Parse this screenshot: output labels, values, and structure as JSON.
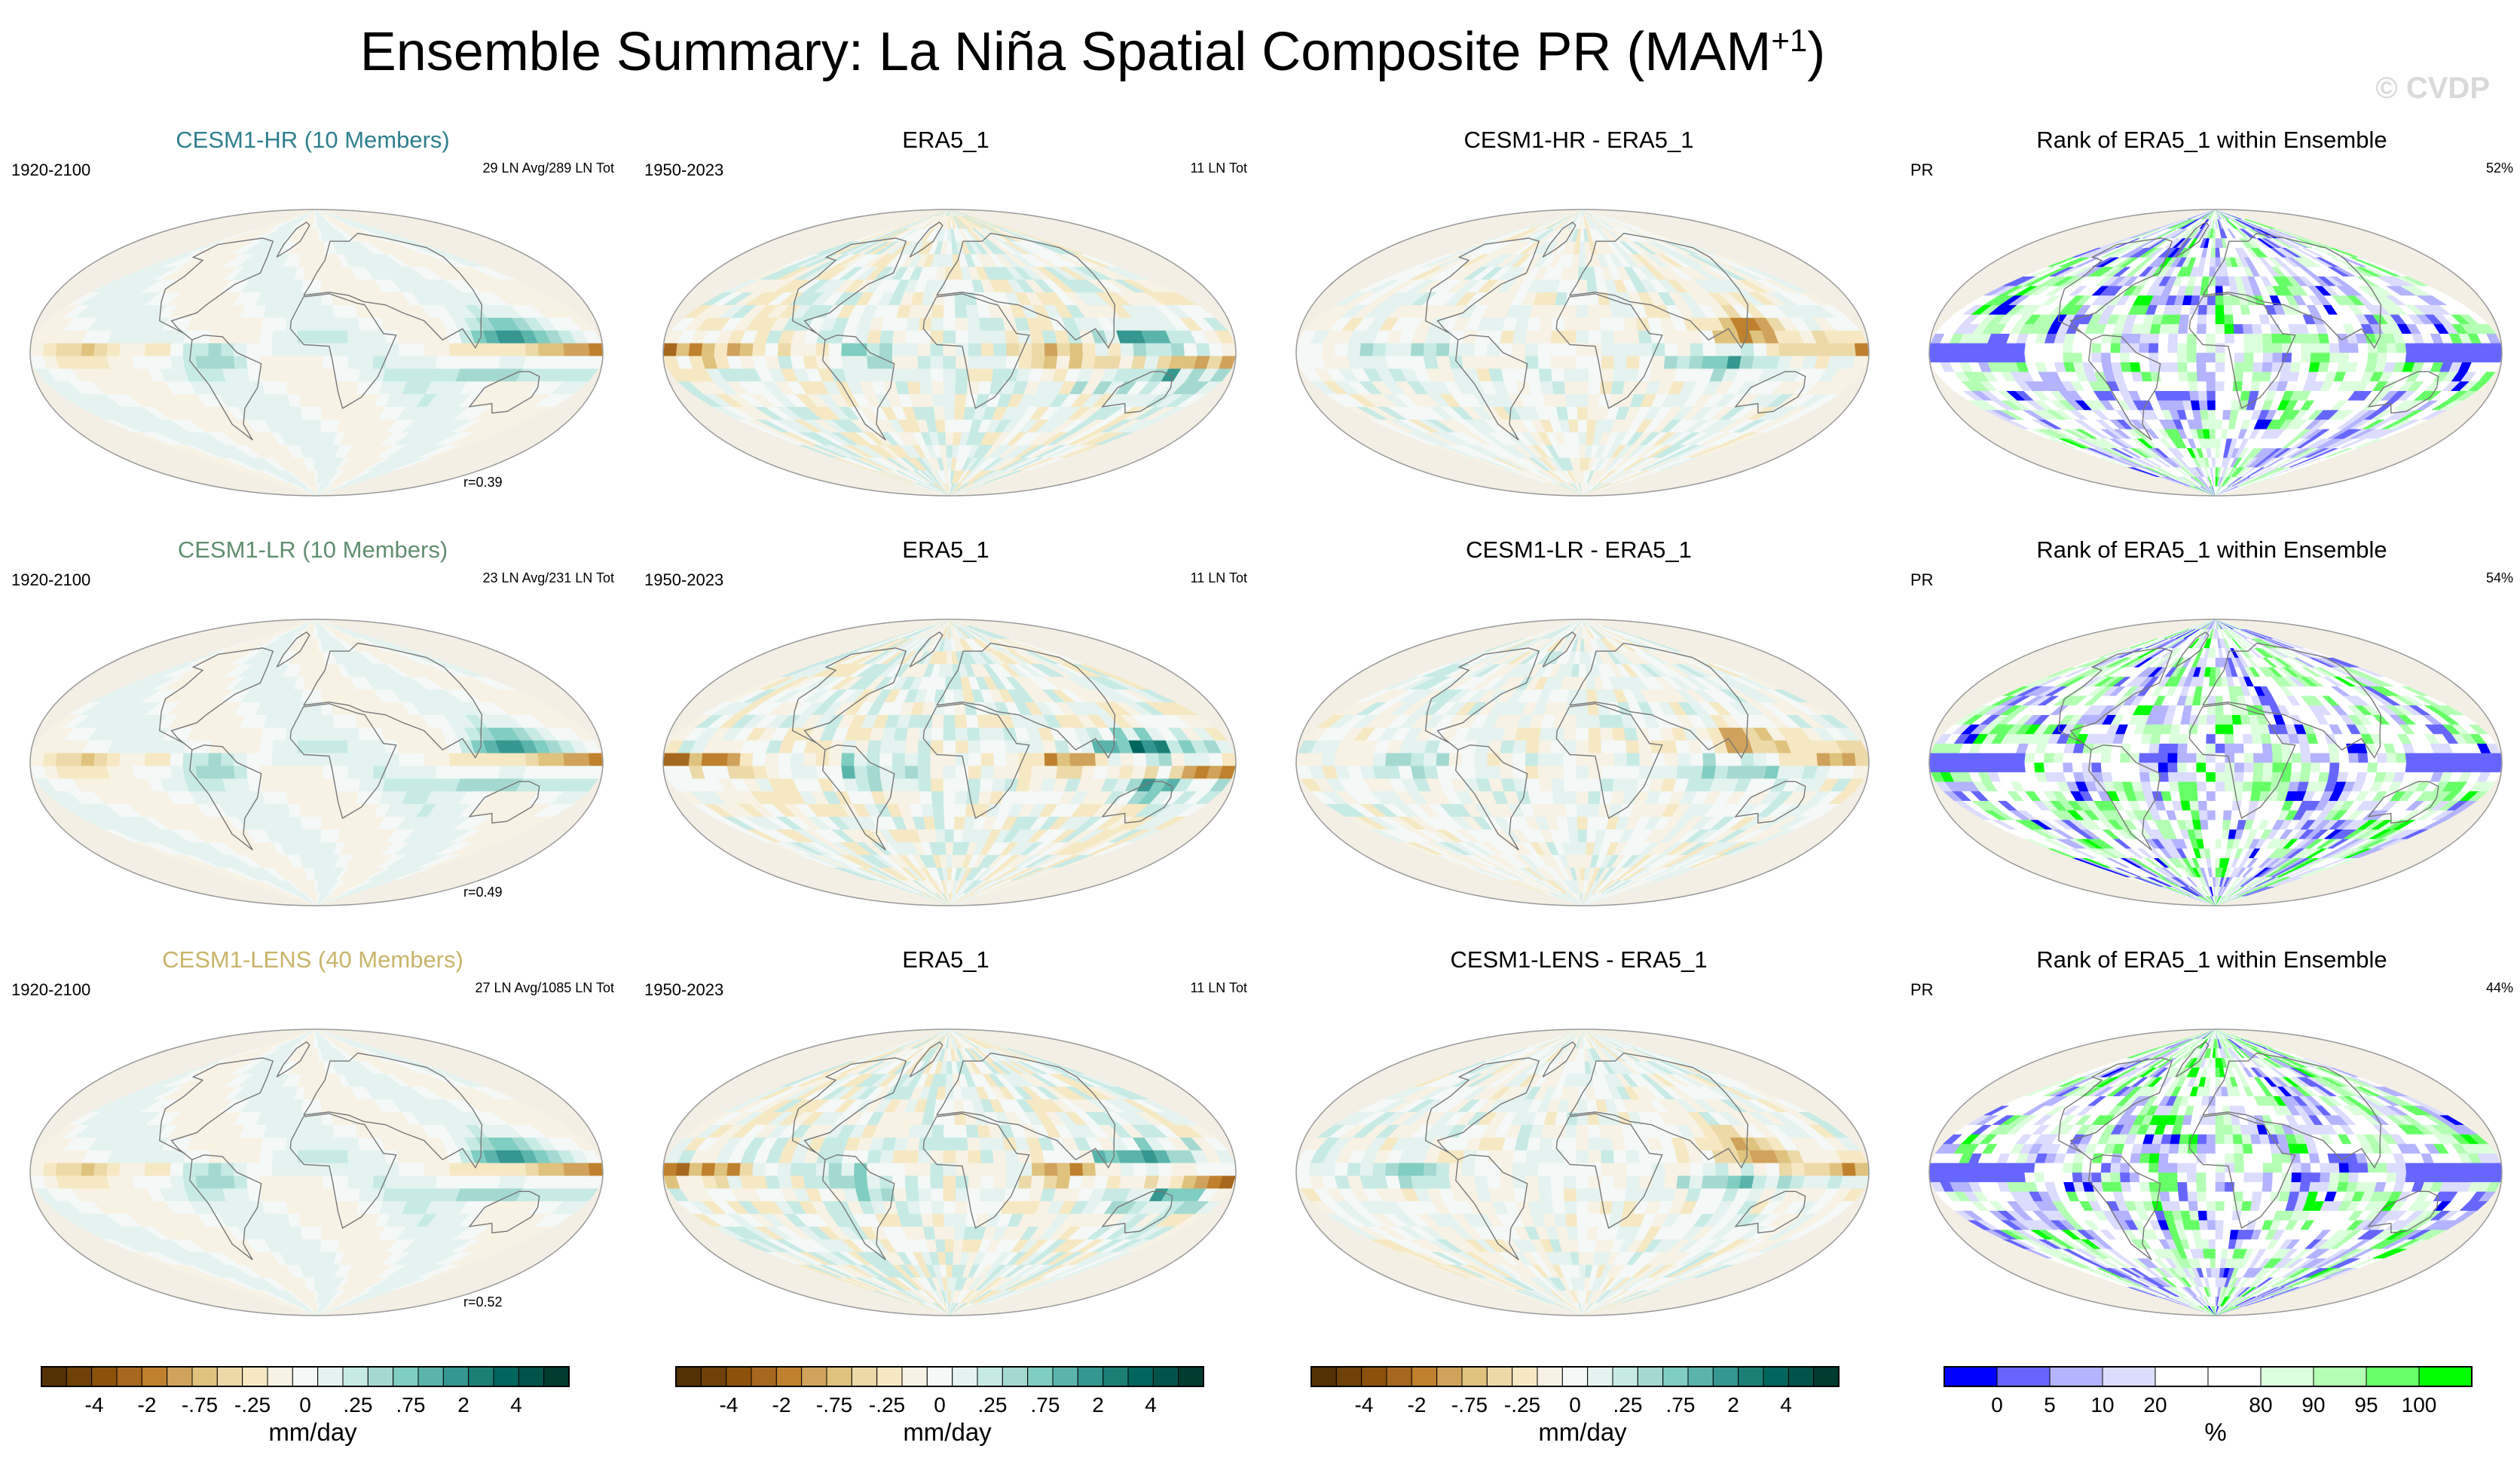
{
  "title": {
    "main": "Ensemble Summary: La Niña Spatial Composite PR (MAM",
    "sup": "+1",
    "close": ")"
  },
  "watermark": "© CVDP",
  "colors": {
    "brbg": [
      "#543005",
      "#6e4108",
      "#8c510a",
      "#a6681e",
      "#bf812d",
      "#d0a25b",
      "#dfc27d",
      "#ecd9a8",
      "#f6e8c3",
      "#f7f2e4",
      "#f4f8f7",
      "#e4f3f0",
      "#c7eae5",
      "#a4d9d1",
      "#80cdc1",
      "#5ab4ac",
      "#35978f",
      "#1b7f76",
      "#01665e",
      "#01534a",
      "#003c30"
    ],
    "rank": [
      "#0000ff",
      "#6666ff",
      "#b3b3ff",
      "#dcdcff",
      "#ffffff",
      "#ffffff",
      "#dcffdc",
      "#b3ffb3",
      "#66ff66",
      "#00ff00"
    ],
    "land": "#f4efe4",
    "coast": "#777777",
    "cesm1_hr": "#2f7f8f",
    "cesm1_lr": "#5f8f6f",
    "cesm1_lens": "#c9b46a"
  },
  "chart_data": [
    {
      "type": "heatmap",
      "title": "CESM1-HR (10 Members)",
      "left": "1920-2100",
      "right": "29 LN Avg/289 LN Tot",
      "corr": "r=0.39",
      "variant": "model",
      "strength": 1.0
    },
    {
      "type": "heatmap",
      "title": "ERA5_1",
      "left": "1950-2023",
      "right": "11 LN Tot",
      "variant": "obs"
    },
    {
      "type": "heatmap",
      "title": "CESM1-HR - ERA5_1",
      "variant": "diff"
    },
    {
      "type": "heatmap",
      "title": "Rank of ERA5_1 within Ensemble",
      "left": "PR",
      "right": "52%",
      "variant": "rank",
      "seed": 3
    },
    {
      "type": "heatmap",
      "title": "CESM1-LR (10 Members)",
      "left": "1920-2100",
      "right": "23 LN Avg/231 LN Tot",
      "corr": "r=0.49",
      "variant": "model",
      "strength": 0.95
    },
    {
      "type": "heatmap",
      "title": "ERA5_1",
      "left": "1950-2023",
      "right": "11 LN Tot",
      "variant": "obs"
    },
    {
      "type": "heatmap",
      "title": "CESM1-LR - ERA5_1",
      "variant": "diff"
    },
    {
      "type": "heatmap",
      "title": "Rank of ERA5_1 within Ensemble",
      "left": "PR",
      "right": "54%",
      "variant": "rank",
      "seed": 7
    },
    {
      "type": "heatmap",
      "title": "CESM1-LENS (40 Members)",
      "left": "1920-2100",
      "right": "27 LN Avg/1085 LN Tot",
      "corr": "r=0.52",
      "variant": "model",
      "strength": 0.9
    },
    {
      "type": "heatmap",
      "title": "ERA5_1",
      "left": "1950-2023",
      "right": "11 LN Tot",
      "variant": "obs"
    },
    {
      "type": "heatmap",
      "title": "CESM1-LENS - ERA5_1",
      "variant": "diff"
    },
    {
      "type": "heatmap",
      "title": "Rank of ERA5_1 within Ensemble",
      "left": "PR",
      "right": "44%",
      "variant": "rank",
      "seed": 11
    }
  ],
  "colorbars": [
    {
      "type": "prec",
      "unit": "mm/day",
      "ticks": [
        "-4",
        "-2",
        "-.75",
        "-.25",
        "0",
        ".25",
        ".75",
        "2",
        "4"
      ]
    },
    {
      "type": "prec",
      "unit": "mm/day",
      "ticks": [
        "-4",
        "-2",
        "-.75",
        "-.25",
        "0",
        ".25",
        ".75",
        "2",
        "4"
      ]
    },
    {
      "type": "prec",
      "unit": "mm/day",
      "ticks": [
        "-4",
        "-2",
        "-.75",
        "-.25",
        "0",
        ".25",
        ".75",
        "2",
        "4"
      ]
    },
    {
      "type": "rank",
      "unit": "%",
      "ticks": [
        "0",
        "5",
        "10",
        "20",
        "80",
        "90",
        "95",
        "100"
      ]
    }
  ]
}
